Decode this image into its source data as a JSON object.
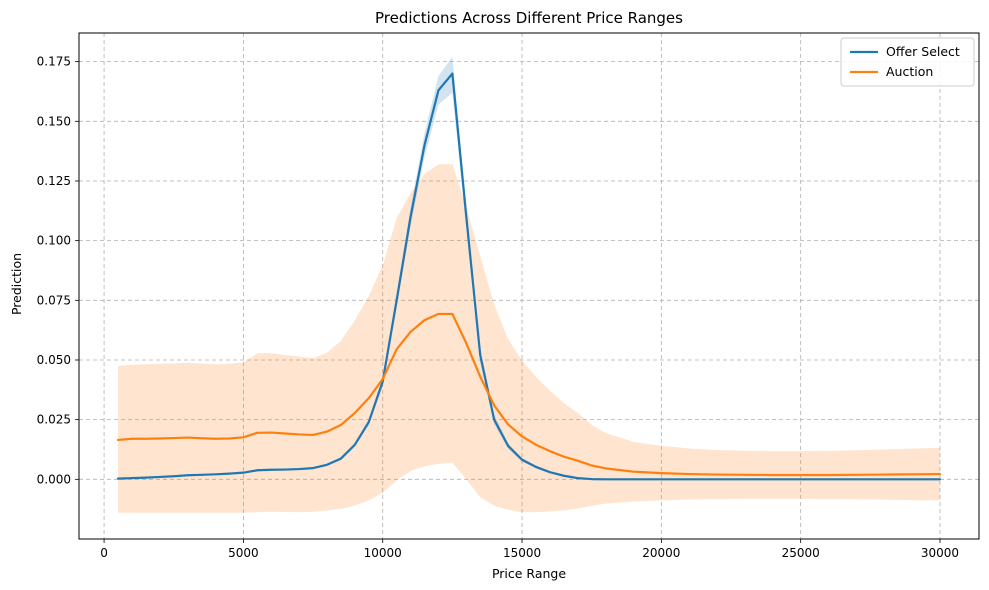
{
  "chart_data": {
    "type": "line",
    "title": "Predictions Across Different Price Ranges",
    "xlabel": "Price Range",
    "ylabel": "Prediction",
    "xlim": [
      -900,
      31400
    ],
    "ylim": [
      -0.025,
      0.187
    ],
    "xticks": [
      0,
      5000,
      10000,
      15000,
      20000,
      25000,
      30000
    ],
    "xtick_labels": [
      "0",
      "5000",
      "10000",
      "15000",
      "20000",
      "25000",
      "30000"
    ],
    "yticks": [
      0.0,
      0.025,
      0.05,
      0.075,
      0.1,
      0.125,
      0.15,
      0.175
    ],
    "ytick_labels": [
      "0.000",
      "0.025",
      "0.050",
      "0.075",
      "0.100",
      "0.125",
      "0.150",
      "0.175"
    ],
    "grid": true,
    "legend": "top-right",
    "series": [
      {
        "name": "Offer Select",
        "color": "#1f77b4",
        "band_color": "#1f77b4",
        "band_opacity": 0.2,
        "x": [
          500,
          1000,
          1500,
          2000,
          2500,
          3000,
          3500,
          4000,
          4500,
          5000,
          5500,
          6000,
          6500,
          7000,
          7500,
          8000,
          8500,
          9000,
          9500,
          10000,
          10500,
          11000,
          11500,
          12000,
          12500,
          13000,
          13500,
          14000,
          14500,
          15000,
          15500,
          16000,
          16500,
          17000,
          17500,
          18000,
          19000,
          20000,
          21000,
          22000,
          23000,
          24000,
          25000,
          26000,
          27000,
          28000,
          29000,
          30000
        ],
        "y": [
          0.0003,
          0.0005,
          0.0007,
          0.001,
          0.0013,
          0.0017,
          0.0019,
          0.0021,
          0.0024,
          0.0028,
          0.0038,
          0.004,
          0.0041,
          0.0043,
          0.0047,
          0.0061,
          0.0087,
          0.0145,
          0.024,
          0.041,
          0.075,
          0.11,
          0.14,
          0.163,
          0.17,
          0.11,
          0.052,
          0.025,
          0.014,
          0.0082,
          0.0052,
          0.003,
          0.0015,
          0.0005,
          0.0001,
          0.0,
          0.0,
          0.0,
          0.0,
          0.0,
          0.0,
          0.0,
          0.0,
          0.0,
          0.0,
          0.0,
          0.0,
          0.0
        ],
        "lower": [
          0.0,
          0.0002,
          0.0004,
          0.0007,
          0.001,
          0.0014,
          0.0016,
          0.0018,
          0.0021,
          0.0025,
          0.0034,
          0.0036,
          0.0037,
          0.0039,
          0.0043,
          0.0056,
          0.0081,
          0.0137,
          0.0228,
          0.039,
          0.072,
          0.106,
          0.135,
          0.157,
          0.162,
          0.105,
          0.049,
          0.023,
          0.0128,
          0.0074,
          0.0046,
          0.0026,
          0.0012,
          0.0003,
          0.0,
          0.0,
          0.0,
          0.0,
          0.0,
          0.0,
          0.0,
          0.0,
          0.0,
          0.0,
          0.0,
          0.0,
          0.0,
          0.0
        ],
        "upper": [
          0.0006,
          0.0008,
          0.001,
          0.0013,
          0.0016,
          0.002,
          0.0022,
          0.0024,
          0.0027,
          0.0031,
          0.0042,
          0.0044,
          0.0045,
          0.0047,
          0.0051,
          0.0066,
          0.0093,
          0.0153,
          0.0252,
          0.043,
          0.078,
          0.114,
          0.145,
          0.169,
          0.177,
          0.115,
          0.055,
          0.027,
          0.0152,
          0.009,
          0.0058,
          0.0034,
          0.0018,
          0.0007,
          0.0002,
          0.0,
          0.0,
          0.0,
          0.0,
          0.0,
          0.0,
          0.0,
          0.0,
          0.0,
          0.0,
          0.0,
          0.0,
          0.0
        ]
      },
      {
        "name": "Auction",
        "color": "#ff7f0e",
        "band_color": "#ff7f0e",
        "band_opacity": 0.2,
        "x": [
          500,
          1000,
          1500,
          2000,
          2500,
          3000,
          3500,
          4000,
          4500,
          5000,
          5500,
          6000,
          6500,
          7000,
          7500,
          8000,
          8500,
          9000,
          9500,
          10000,
          10500,
          11000,
          11500,
          12000,
          12500,
          13000,
          13500,
          14000,
          14500,
          15000,
          15500,
          16000,
          16500,
          17000,
          17500,
          18000,
          19000,
          20000,
          21000,
          22000,
          23000,
          24000,
          25000,
          26000,
          27000,
          28000,
          29000,
          30000
        ],
        "y": [
          0.0165,
          0.017,
          0.017,
          0.0171,
          0.0173,
          0.0175,
          0.0172,
          0.017,
          0.0171,
          0.0176,
          0.0195,
          0.0196,
          0.0192,
          0.0188,
          0.0186,
          0.02,
          0.0228,
          0.0278,
          0.034,
          0.042,
          0.0545,
          0.0618,
          0.0667,
          0.0693,
          0.0693,
          0.057,
          0.043,
          0.031,
          0.023,
          0.018,
          0.0145,
          0.0118,
          0.0095,
          0.0078,
          0.0058,
          0.0046,
          0.0032,
          0.0026,
          0.0022,
          0.002,
          0.0019,
          0.0018,
          0.0018,
          0.0018,
          0.0019,
          0.002,
          0.0021,
          0.0022
        ],
        "lower": [
          -0.014,
          -0.014,
          -0.014,
          -0.014,
          -0.014,
          -0.014,
          -0.014,
          -0.014,
          -0.014,
          -0.014,
          -0.0138,
          -0.0136,
          -0.0137,
          -0.0138,
          -0.0136,
          -0.013,
          -0.0123,
          -0.011,
          -0.0088,
          -0.0056,
          -0.0005,
          0.0035,
          0.0055,
          0.0065,
          0.007,
          0.0,
          -0.0075,
          -0.011,
          -0.0128,
          -0.0138,
          -0.0138,
          -0.0135,
          -0.013,
          -0.0122,
          -0.0112,
          -0.0102,
          -0.0093,
          -0.0088,
          -0.0085,
          -0.0083,
          -0.0082,
          -0.0082,
          -0.0082,
          -0.0083,
          -0.0084,
          -0.0085,
          -0.0087,
          -0.0088
        ],
        "upper": [
          0.0475,
          0.048,
          0.0482,
          0.0484,
          0.0486,
          0.0488,
          0.0485,
          0.0482,
          0.0484,
          0.049,
          0.0528,
          0.0529,
          0.0521,
          0.0514,
          0.0508,
          0.0531,
          0.058,
          0.0666,
          0.0768,
          0.0896,
          0.1095,
          0.12,
          0.128,
          0.132,
          0.132,
          0.114,
          0.0935,
          0.0732,
          0.0588,
          0.0498,
          0.0428,
          0.0371,
          0.032,
          0.0278,
          0.0228,
          0.0194,
          0.0157,
          0.014,
          0.0129,
          0.0123,
          0.012,
          0.0118,
          0.0118,
          0.0119,
          0.0122,
          0.0125,
          0.0129,
          0.0132
        ]
      }
    ]
  }
}
